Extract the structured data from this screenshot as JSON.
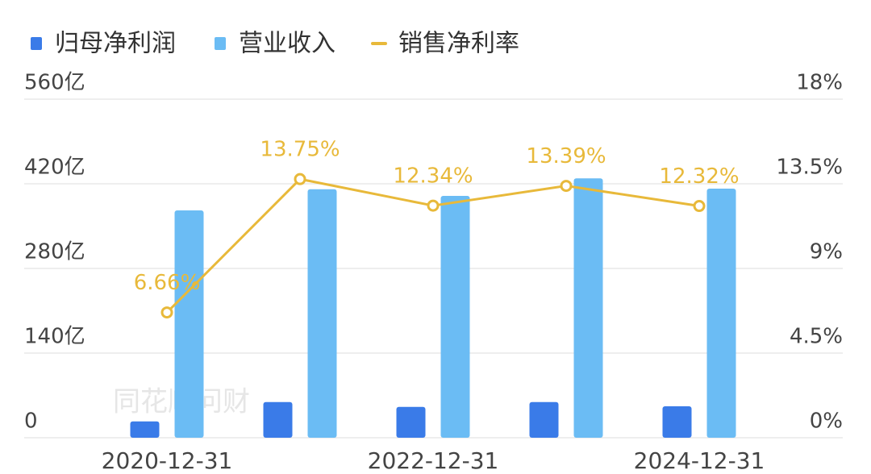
{
  "chart_data": {
    "type": "bar",
    "categories": [
      "2020-12-31",
      null,
      "2022-12-31",
      null,
      "2024-12-31"
    ],
    "series": [
      {
        "name": "归母净利润",
        "type": "bar",
        "color": "#3a7be8",
        "values": [
          27,
          59,
          51,
          59,
          52
        ]
      },
      {
        "name": "营业收入",
        "type": "bar",
        "color": "#6bbcf4",
        "values": [
          376,
          411,
          400,
          429,
          412
        ]
      },
      {
        "name": "销售净利率",
        "type": "line",
        "axis": "y2",
        "color": "#e8b93a",
        "values": [
          6.66,
          13.75,
          12.34,
          13.39,
          12.32
        ],
        "value_labels": [
          "6.66%",
          "13.75%",
          "12.34%",
          "13.39%",
          "12.32%"
        ]
      }
    ],
    "ylim": [
      0,
      560
    ],
    "yticks": [
      0,
      {
        "value": 140,
        "label": "140亿"
      },
      {
        "value": 280,
        "label": "280亿"
      },
      {
        "value": 420,
        "label": "420亿"
      },
      {
        "value": 560,
        "label": "560亿"
      }
    ],
    "y2lim": [
      0,
      18
    ],
    "y2ticks": [
      {
        "value": 0,
        "label": "0%"
      },
      {
        "value": 4.5,
        "label": "4.5%"
      },
      {
        "value": 9,
        "label": "9%"
      },
      {
        "value": 13.5,
        "label": "13.5%"
      },
      {
        "value": 18,
        "label": "18%"
      }
    ],
    "grid": true,
    "legend": "top-left",
    "watermark": "同花顺问财"
  }
}
